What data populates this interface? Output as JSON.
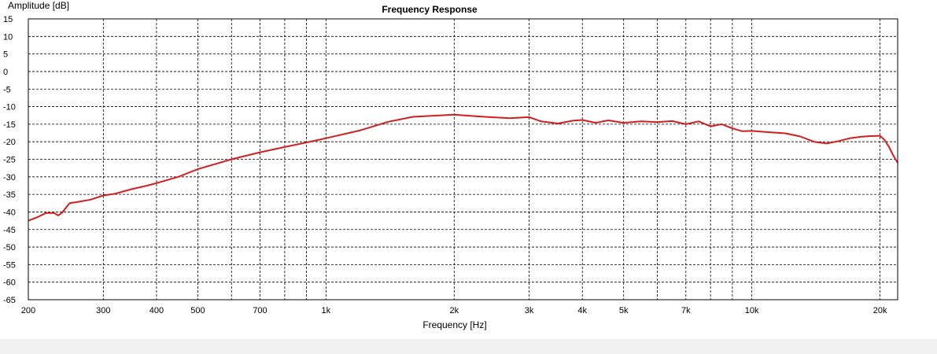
{
  "chart_data": {
    "type": "line",
    "title": "Frequency Response",
    "xlabel": "Frequency [Hz]",
    "ylabel": "Amplitude [dB]",
    "xscale": "log",
    "xlim": [
      200,
      22000
    ],
    "ylim": [
      -65,
      15
    ],
    "grid": true,
    "x_ticks": [
      {
        "value": 200,
        "label": "200"
      },
      {
        "value": 300,
        "label": "300"
      },
      {
        "value": 400,
        "label": "400"
      },
      {
        "value": 500,
        "label": "500"
      },
      {
        "value": 700,
        "label": "700"
      },
      {
        "value": 1000,
        "label": "1k"
      },
      {
        "value": 2000,
        "label": "2k"
      },
      {
        "value": 3000,
        "label": "3k"
      },
      {
        "value": 4000,
        "label": "4k"
      },
      {
        "value": 5000,
        "label": "5k"
      },
      {
        "value": 7000,
        "label": "7k"
      },
      {
        "value": 10000,
        "label": "10k"
      },
      {
        "value": 20000,
        "label": "20k"
      }
    ],
    "x_gridlines": [
      200,
      300,
      400,
      500,
      600,
      700,
      800,
      900,
      1000,
      2000,
      3000,
      4000,
      5000,
      6000,
      7000,
      8000,
      9000,
      10000,
      20000
    ],
    "y_ticks": [
      15,
      10,
      5,
      0,
      -5,
      -10,
      -15,
      -20,
      -25,
      -30,
      -35,
      -40,
      -45,
      -50,
      -55,
      -60,
      -65
    ],
    "series": [
      {
        "color": "#d41e1e",
        "x": [
          200,
          210,
          220,
          230,
          235,
          240,
          250,
          260,
          280,
          300,
          320,
          350,
          380,
          400,
          450,
          500,
          600,
          700,
          800,
          900,
          1000,
          1200,
          1400,
          1600,
          2000,
          2300,
          2700,
          3000,
          3200,
          3500,
          3800,
          4000,
          4300,
          4600,
          5000,
          5500,
          6000,
          6500,
          7000,
          7500,
          8000,
          8500,
          9000,
          9500,
          10000,
          11000,
          12000,
          13000,
          14000,
          15000,
          16000,
          17000,
          18000,
          19000,
          20000,
          20500,
          21000,
          21500,
          22000
        ],
        "y": [
          -42.5,
          -41.5,
          -40.3,
          -40.3,
          -41.0,
          -40.2,
          -37.5,
          -37.2,
          -36.5,
          -35.3,
          -34.8,
          -33.5,
          -32.5,
          -31.8,
          -30.0,
          -27.8,
          -25.0,
          -23.0,
          -21.5,
          -20.2,
          -19.0,
          -16.8,
          -14.3,
          -12.9,
          -12.3,
          -12.8,
          -13.3,
          -13.0,
          -14.2,
          -14.8,
          -14.0,
          -13.8,
          -14.6,
          -13.9,
          -14.6,
          -14.2,
          -14.4,
          -14.1,
          -15.0,
          -14.2,
          -15.6,
          -15.0,
          -16.2,
          -17.0,
          -16.9,
          -17.3,
          -17.6,
          -18.5,
          -20.0,
          -20.5,
          -19.8,
          -19.0,
          -18.6,
          -18.4,
          -18.3,
          -19.5,
          -21.5,
          -24.0,
          -26.0
        ]
      }
    ]
  }
}
